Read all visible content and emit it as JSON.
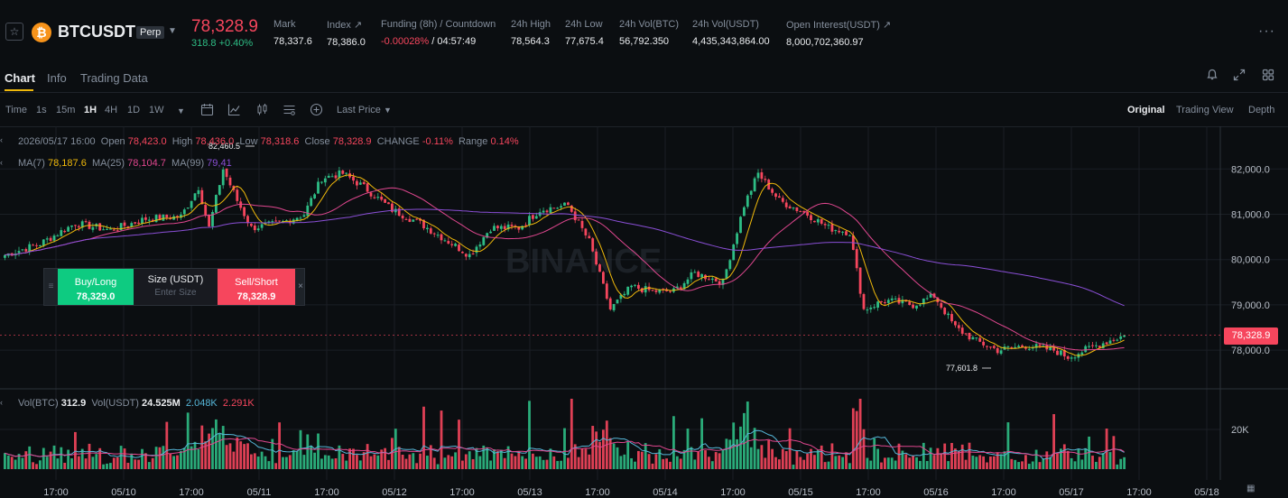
{
  "header": {
    "symbol": "BTCUSDT",
    "badge": "Perp",
    "coin_glyph": "₿",
    "last_price": "78,328.9",
    "change": "318.8 +0.40%",
    "stats": [
      {
        "label": "Mark",
        "value": "78,337.6"
      },
      {
        "label": "Index ↗",
        "value": "78,386.0"
      },
      {
        "label": "Funding (8h) / Countdown",
        "value_red": "-0.00028%",
        "value_white": " / 04:57:49"
      },
      {
        "label": "24h High",
        "value": "78,564.3"
      },
      {
        "label": "24h Low",
        "value": "77,675.4"
      },
      {
        "label": "24h Vol(BTC)",
        "value": "56,792.350"
      },
      {
        "label": "24h Vol(USDT)",
        "value": "4,435,343,864.00"
      },
      {
        "label": "Open Interest(USDT) ↗",
        "value": "8,000,702,360.97"
      }
    ]
  },
  "tabs": [
    "Chart",
    "Info",
    "Trading Data"
  ],
  "toolbar": {
    "time_label": "Time",
    "intervals": [
      "1s",
      "15m",
      "1H",
      "4H",
      "1D",
      "1W"
    ],
    "active_interval": "1H",
    "price_type": "Last Price",
    "views": [
      "Original",
      "Trading View",
      "Depth"
    ],
    "active_view": "Original"
  },
  "legend": {
    "date": "2026/05/17 16:00",
    "open_label": "Open",
    "open": "78,423.0",
    "high_label": "High",
    "high": "78,436.0",
    "low_label": "Low",
    "low": "78,318.6",
    "close_label": "Close",
    "close": "78,328.9",
    "change_label": "CHANGE",
    "change": "-0.11%",
    "range_label": "Range",
    "range": "0.14%",
    "ma7_label": "MA(7)",
    "ma7": "78,187.6",
    "ma25_label": "MA(25)",
    "ma25": "78,104.7",
    "ma99_label": "MA(99)",
    "ma99": "79,41",
    "vol_label": "Vol(BTC)",
    "vol_btc": "312.9",
    "volusdt_label": "Vol(USDT)",
    "vol_usdt": "24.525M",
    "vol_ma1": "2.048K",
    "vol_ma2": "2.291K"
  },
  "order_widget": {
    "buy_label": "Buy/Long",
    "buy_price": "78,329.0",
    "size_label": "Size (USDT)",
    "size_placeholder": "Enter Size",
    "sell_label": "Sell/Short",
    "sell_price": "78,328.9"
  },
  "chart_data": {
    "type": "candlestick",
    "price_ticks": [
      "82,000.0",
      "81,000.0",
      "80,000.0",
      "79,000.0",
      "78,000.0"
    ],
    "price_tick_values": [
      82000,
      81000,
      80000,
      79000,
      78000
    ],
    "volume_ticks": [
      "20K"
    ],
    "x_ticks": [
      "17:00",
      "05/10",
      "17:00",
      "05/11",
      "17:00",
      "05/12",
      "17:00",
      "05/13",
      "17:00",
      "05/14",
      "17:00",
      "05/15",
      "17:00",
      "05/16",
      "17:00",
      "05/17",
      "17:00",
      "05/18"
    ],
    "high_marker": "82,460.5",
    "low_marker": "77,601.8",
    "current_price": "78,328.9",
    "watermark": "BINANCE",
    "up_color": "#2ebd85",
    "down_color": "#f6465d",
    "ma7_color": "#f0b90b",
    "ma25_color": "#e0478f",
    "ma99_color": "#8a4fd6",
    "vol_ma_color": "#56b6d8",
    "close_anchors": [
      [
        0,
        80100
      ],
      [
        10,
        80350
      ],
      [
        20,
        80800
      ],
      [
        30,
        80650
      ],
      [
        40,
        80900
      ],
      [
        50,
        80950
      ],
      [
        55,
        81600
      ],
      [
        58,
        80700
      ],
      [
        62,
        82000
      ],
      [
        66,
        81300
      ],
      [
        70,
        80700
      ],
      [
        78,
        80800
      ],
      [
        85,
        81000
      ],
      [
        90,
        81800
      ],
      [
        96,
        81900
      ],
      [
        102,
        81600
      ],
      [
        110,
        81100
      ],
      [
        118,
        80800
      ],
      [
        126,
        80400
      ],
      [
        132,
        80100
      ],
      [
        138,
        80700
      ],
      [
        146,
        80700
      ],
      [
        152,
        81100
      ],
      [
        160,
        81200
      ],
      [
        166,
        80400
      ],
      [
        172,
        78900
      ],
      [
        178,
        79400
      ],
      [
        184,
        79300
      ],
      [
        190,
        79300
      ],
      [
        196,
        79700
      ],
      [
        204,
        79500
      ],
      [
        210,
        81200
      ],
      [
        214,
        81900
      ],
      [
        220,
        81300
      ],
      [
        228,
        81000
      ],
      [
        234,
        80700
      ],
      [
        240,
        80600
      ],
      [
        244,
        78900
      ],
      [
        250,
        79100
      ],
      [
        258,
        79000
      ],
      [
        264,
        79200
      ],
      [
        270,
        78500
      ],
      [
        276,
        78200
      ],
      [
        282,
        78000
      ],
      [
        290,
        78100
      ],
      [
        298,
        78000
      ],
      [
        302,
        77850
      ],
      [
        310,
        78100
      ],
      [
        318,
        78330
      ]
    ]
  }
}
